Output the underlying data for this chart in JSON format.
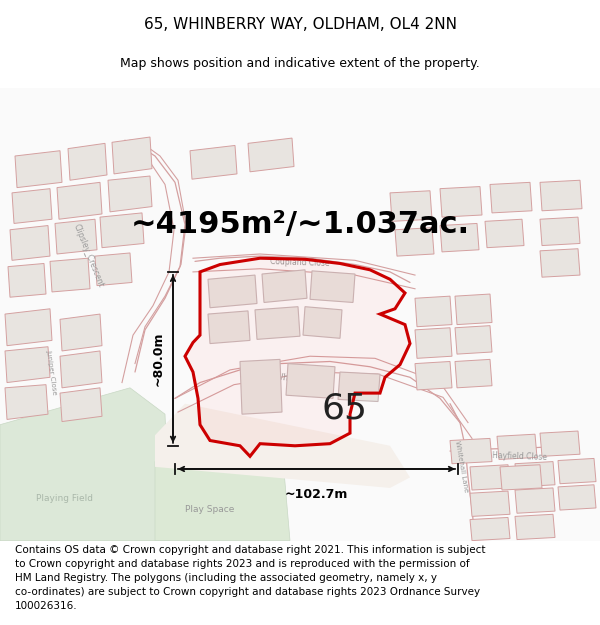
{
  "title": "65, WHINBERRY WAY, OLDHAM, OL4 2NN",
  "subtitle": "Map shows position and indicative extent of the property.",
  "area_text": "~4195m²/~1.037ac.",
  "measurement_width": "~102.7m",
  "measurement_height": "~80.0m",
  "label_number": "65",
  "footer_text": "Contains OS data © Crown copyright and database right 2021. This information is subject\nto Crown copyright and database rights 2023 and is reproduced with the permission of\nHM Land Registry. The polygons (including the associated geometry, namely x, y\nco-ordinates) are subject to Crown copyright and database rights 2023 Ordnance Survey\n100026316.",
  "map_bg": "#ffffff",
  "bld_fill": "#e8e4e0",
  "bld_edge": "#d4a0a0",
  "road_fill": "#f5f0eb",
  "road_edge": "#d4a0a0",
  "green_fill": "#dce8d8",
  "green_edge": "#c8d8c4",
  "prop_edge": "#cc0000",
  "prop_fill_alpha": 0.04,
  "dim_color": "#111111",
  "text_gray": "#999999",
  "figsize": [
    6.0,
    6.25
  ],
  "dpi": 100,
  "title_fs": 11,
  "subtitle_fs": 9,
  "area_fs": 22,
  "num_fs": 26,
  "footer_fs": 7.5,
  "street_fs": 5.5
}
